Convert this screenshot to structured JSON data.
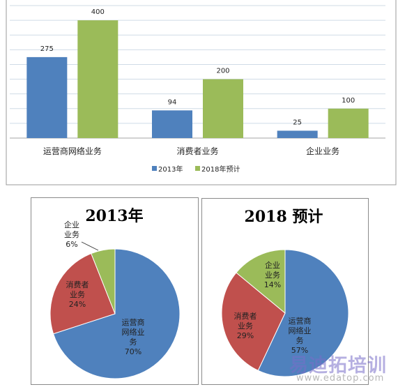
{
  "chart_data": [
    {
      "type": "bar",
      "categories": [
        "运营商网络业务",
        "消费者业务",
        "企业业务"
      ],
      "series": [
        {
          "name": "2013年",
          "values": [
            275,
            94,
            25
          ],
          "color": "#4f81bd"
        },
        {
          "name": "2018年预计",
          "values": [
            400,
            200,
            100
          ],
          "color": "#9bbb59"
        }
      ],
      "ylim": [
        0,
        450
      ],
      "grid": true,
      "legend": "bottom"
    },
    {
      "type": "pie",
      "title": "2013年",
      "slices": [
        {
          "name": "运营商网络业务",
          "label": [
            "运营商",
            "网络业",
            "务"
          ],
          "pct_label": "70%",
          "value": 70,
          "color": "#4f81bd"
        },
        {
          "name": "消费者业务",
          "label": [
            "消费者",
            "业务"
          ],
          "pct_label": "24%",
          "value": 24,
          "color": "#c0504d"
        },
        {
          "name": "企业业务",
          "label": [
            "企业",
            "业务"
          ],
          "pct_label": "6%",
          "value": 6,
          "color": "#9bbb59"
        }
      ]
    },
    {
      "type": "pie",
      "title": "2018 预计",
      "slices": [
        {
          "name": "运营商网络业务",
          "label": [
            "运营商",
            "网络业",
            "务"
          ],
          "pct_label": "57%",
          "value": 57,
          "color": "#4f81bd"
        },
        {
          "name": "消费者业务",
          "label": [
            "消费者",
            "业务"
          ],
          "pct_label": "29%",
          "value": 29,
          "color": "#c0504d"
        },
        {
          "name": "企业业务",
          "label": [
            "企业",
            "业务"
          ],
          "pct_label": "14%",
          "value": 14,
          "color": "#9bbb59"
        }
      ]
    }
  ],
  "watermark": {
    "text": "易迪拓培训",
    "url": "www.edatop.com"
  }
}
